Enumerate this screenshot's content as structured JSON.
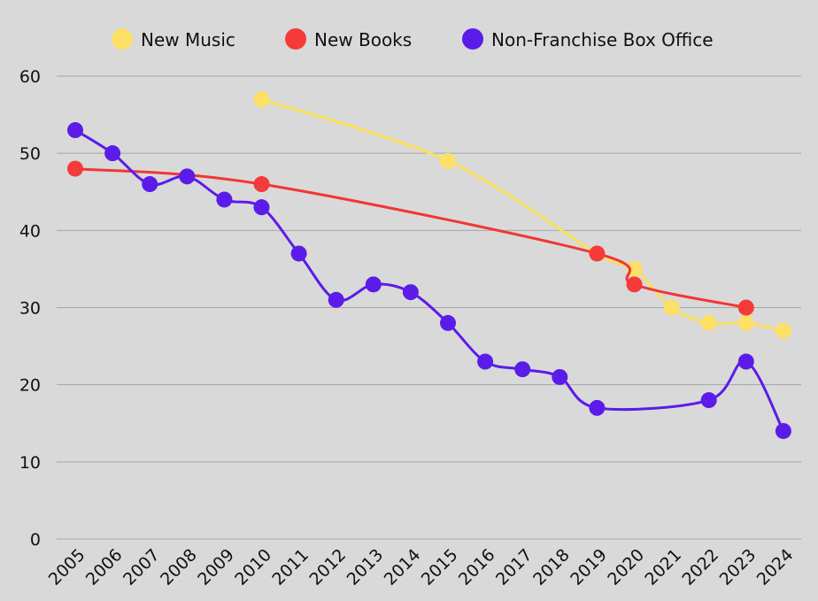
{
  "chart_data": {
    "type": "line",
    "title": "",
    "xlabel": "",
    "ylabel": "",
    "categories": [
      "2005",
      "2006",
      "2007",
      "2008",
      "2009",
      "2010",
      "2011",
      "2012",
      "2013",
      "2014",
      "2015",
      "2016",
      "2017",
      "2018",
      "2019",
      "2020",
      "2021",
      "2022",
      "2023",
      "2024"
    ],
    "ylim": [
      0,
      60
    ],
    "y_ticks": [
      0,
      10,
      20,
      30,
      40,
      50,
      60
    ],
    "y_tick_labels": [
      "0",
      "10",
      "20",
      "30",
      "40",
      "50",
      "60"
    ],
    "grid": true,
    "legend_position": "top-center",
    "background": "#d9d9d9",
    "grid_color": "#a6a6a6",
    "series": [
      {
        "name": "New Music",
        "color": "#ffe066",
        "line_color": "#fbe05a",
        "points": [
          {
            "x": "2010",
            "y": 57
          },
          {
            "x": "2015",
            "y": 49
          },
          {
            "x": "2019",
            "y": 37
          },
          {
            "x": "2020",
            "y": 35
          },
          {
            "x": "2021",
            "y": 30
          },
          {
            "x": "2022",
            "y": 28
          },
          {
            "x": "2023",
            "y": 28
          },
          {
            "x": "2024",
            "y": 27
          }
        ]
      },
      {
        "name": "New Books",
        "color": "#f53a3a",
        "line_color": "#f23535",
        "points": [
          {
            "x": "2005",
            "y": 48
          },
          {
            "x": "2010",
            "y": 46
          },
          {
            "x": "2019",
            "y": 37
          },
          {
            "x": "2020",
            "y": 33
          },
          {
            "x": "2023",
            "y": 30
          }
        ]
      },
      {
        "name": "Non-Franchise Box Office",
        "color": "#5b1be8",
        "line_color": "#5b1be8",
        "points": [
          {
            "x": "2005",
            "y": 53
          },
          {
            "x": "2006",
            "y": 50
          },
          {
            "x": "2007",
            "y": 46
          },
          {
            "x": "2008",
            "y": 47
          },
          {
            "x": "2009",
            "y": 44
          },
          {
            "x": "2010",
            "y": 43
          },
          {
            "x": "2011",
            "y": 37
          },
          {
            "x": "2012",
            "y": 31
          },
          {
            "x": "2013",
            "y": 33
          },
          {
            "x": "2014",
            "y": 32
          },
          {
            "x": "2015",
            "y": 28
          },
          {
            "x": "2016",
            "y": 23
          },
          {
            "x": "2017",
            "y": 22
          },
          {
            "x": "2018",
            "y": 21
          },
          {
            "x": "2019",
            "y": 17
          },
          {
            "x": "2022",
            "y": 18
          },
          {
            "x": "2023",
            "y": 23
          },
          {
            "x": "2024",
            "y": 14
          }
        ]
      }
    ]
  }
}
